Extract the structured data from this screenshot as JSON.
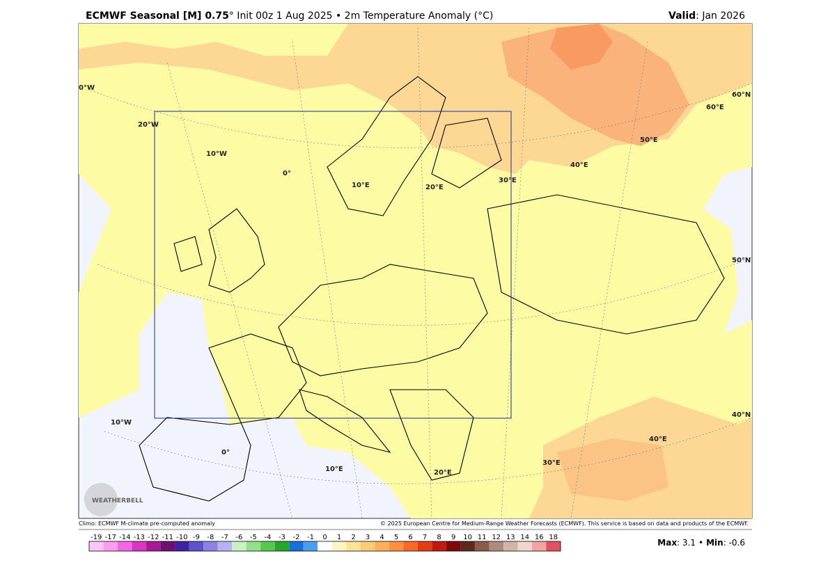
{
  "header": {
    "title_bold": "ECMWF Seasonal [M] 0.75",
    "title_rest": "° Init 00z 1 Aug 2025 • 2m Temperature Anomaly (°C)",
    "valid_label": "Valid",
    "valid_value": ": Jan 2026"
  },
  "map": {
    "grid_labels": [
      "0°W",
      "20°W",
      "10°W",
      "0°",
      "10°E",
      "20°E",
      "30°E",
      "40°E",
      "50°E",
      "60°E",
      "60°N",
      "50°N",
      "40°N",
      "10°W",
      "0°",
      "10°E",
      "20°E",
      "30°E",
      "40°E"
    ],
    "logo": "WEATHERBELL"
  },
  "footer": {
    "left": "Climo: ECMWF M-climate pre-computed anomaly",
    "right": "© 2025 European Centre for Medium-Range Weather Forecasts (ECMWF). This service is based on data and products of the ECMWF."
  },
  "colorbar": {
    "labels": [
      -19,
      -17,
      -14,
      -13,
      -12,
      -11,
      -10,
      -9,
      -8,
      -7,
      -6,
      -5,
      -4,
      -3,
      -2,
      -1,
      0,
      1,
      2,
      3,
      4,
      5,
      6,
      7,
      8,
      9,
      10,
      11,
      12,
      13,
      14,
      16,
      18
    ],
    "colors": [
      "#ffc6f5",
      "#ff9eee",
      "#f467e2",
      "#d836c6",
      "#a81a94",
      "#6e0f72",
      "#3e24a0",
      "#5f52cc",
      "#8c82e2",
      "#b9b2f2",
      "#c9f2c0",
      "#93e08a",
      "#55c84f",
      "#24a82c",
      "#1a6fd8",
      "#4a9ef0",
      "#ffffff",
      "#fff5c4",
      "#ffe395",
      "#ffcb75",
      "#ffb058",
      "#ff9040",
      "#f86828",
      "#e43c14",
      "#bf1a0e",
      "#7e0a08",
      "#5c2a1c",
      "#8c5c4a",
      "#b08a7a",
      "#d2b4a8",
      "#efd6cf",
      "#f4a3a3",
      "#e05262"
    ],
    "max_label": "Max",
    "max_value": ": 3.1",
    "sep": "•",
    "min_label": "Min",
    "min_value": ": -0.6"
  }
}
